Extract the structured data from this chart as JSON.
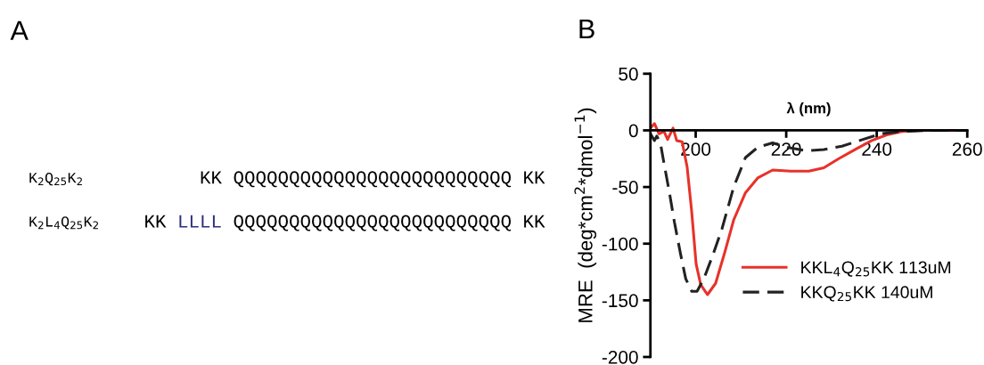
{
  "chart_data": [
    {
      "type": "other",
      "title": "A",
      "y_categories": [
        "K$_{2}$Q$_{25}$K$_{2}$",
        "K$_{2}$L$_{4}$Q$_{25}$K$_{2}$"
      ],
      "cell_labels": [
        [
          "KK",
          "QQQQQQQQQQQQQQQQQQQQQQQQQ",
          "KK"
        ],
        [
          "KK",
          "LLLL",
          "QQQQQQQQQQQQQQQQQQQQQQQQQ",
          "KK"
        ]
      ],
      "colors": [
        [
          "#000000",
          "#000000",
          "#000000"
        ],
        [
          "#000000",
          "#2b2f7a",
          "#000000",
          "#000000"
        ]
      ]
    },
    {
      "type": "line",
      "title": "B",
      "xlabel": "λ (nm)",
      "ylabel": "MRE  (deg*cm$^{2}$*dmol$^{−1}$)",
      "xlim": [
        190,
        260
      ],
      "xticks": [
        200,
        220,
        240,
        260
      ],
      "ylim": [
        -200,
        50
      ],
      "yticks": [
        -200,
        -150,
        -100,
        -50,
        0,
        50
      ],
      "grid": false,
      "legend": "bottom right",
      "marker": "none",
      "series": [
        {
          "name": "KKL$_{4}$Q$_{25}$KK 113uM",
          "color": "#e8312a",
          "line_style": "solid",
          "x": [
            190,
            190.9,
            191.9,
            193,
            193.8,
            195,
            195.8,
            197,
            198.1,
            199.1,
            200.1,
            201.1,
            202.6,
            204.4,
            206.4,
            208.4,
            211,
            213.7,
            217,
            221,
            225,
            228.3,
            231.6,
            235.6,
            238.9,
            242.2,
            245.5,
            249.5,
            260
          ],
          "values": [
            2,
            6,
            -3,
            -1,
            -8,
            2,
            -9,
            -10,
            -32,
            -71,
            -118,
            -136,
            -145,
            -135,
            -108,
            -79,
            -55,
            -42,
            -35,
            -36,
            -36,
            -33,
            -25,
            -16,
            -9,
            -4,
            -1,
            0,
            0
          ]
        },
        {
          "name": "KKQ$_{25}$KK 140uM",
          "color": "#222222",
          "line_style": "dashed",
          "x": [
            190,
            190.9,
            191.4,
            192.2,
            193,
            194.2,
            195.3,
            196.6,
            197.8,
            199.1,
            200.3,
            201.8,
            203.8,
            205.8,
            208.4,
            211,
            213.7,
            217,
            220.3,
            224.3,
            228.3,
            232.3,
            236.2,
            240.9,
            245.5,
            251.5,
            260
          ],
          "values": [
            -3,
            -9,
            -5,
            -11,
            -29,
            -55,
            -81,
            -108,
            -131,
            -142,
            -142,
            -131,
            -110,
            -87,
            -50,
            -24,
            -15,
            -11,
            -15,
            -18,
            -17,
            -14,
            -9,
            -3,
            -1,
            0,
            0
          ]
        }
      ]
    }
  ]
}
